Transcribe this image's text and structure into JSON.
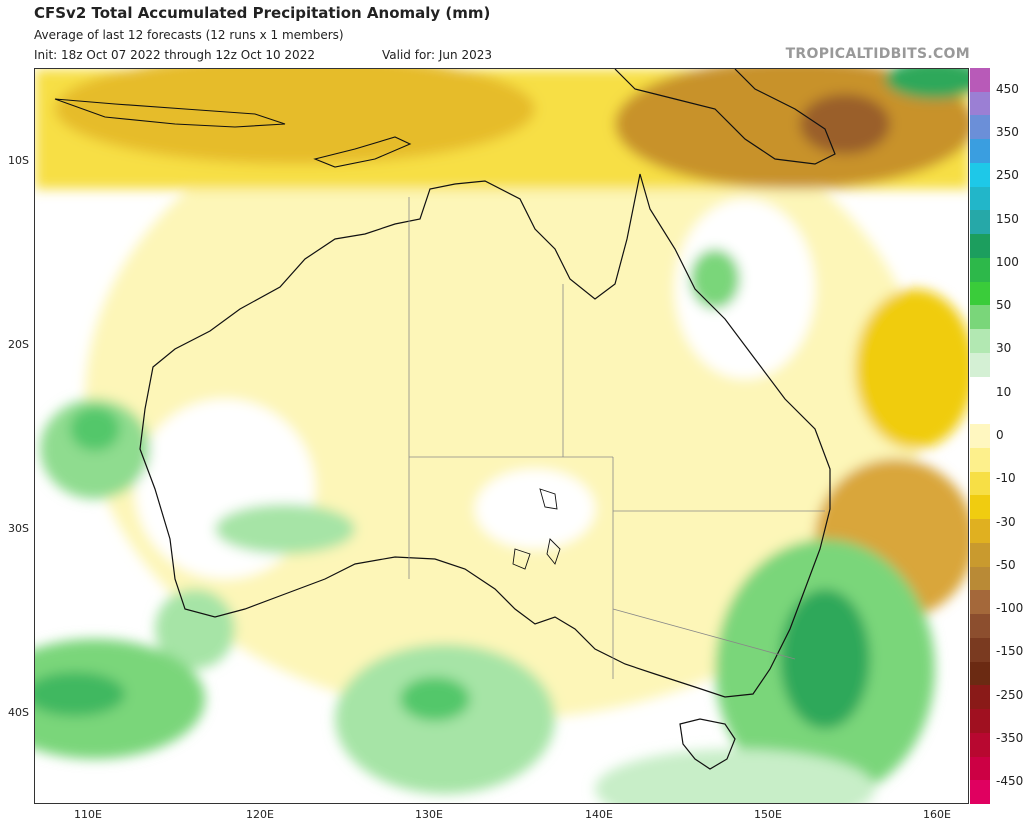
{
  "header": {
    "title": "CFSv2 Total Accumulated Precipitation Anomaly (mm)",
    "subtitle": "Average of last 12 forecasts (12 runs x 1 members)",
    "init": "Init: 18z Oct 07 2022 through 12z Oct 10 2022",
    "valid": "Valid for: Jun 2023",
    "brand": "TROPICALTIDBITS.COM"
  },
  "map": {
    "region": "Australia",
    "lat_labels": [
      "10S",
      "20S",
      "30S",
      "40S"
    ],
    "lon_labels": [
      "110E",
      "120E",
      "130E",
      "140E",
      "150E",
      "160E"
    ],
    "anomaly_fields": [
      {
        "name": "northern-maritime-dry",
        "color": "#e2c240"
      },
      {
        "name": "new-guinea-dry",
        "color": "#c8922a"
      },
      {
        "name": "east-coast-dry",
        "color": "#d9a63a"
      },
      {
        "name": "tasman-wet",
        "color": "#3fb860"
      },
      {
        "name": "southwest-ocean-wet",
        "color": "#52c76a"
      }
    ]
  },
  "colorbar": {
    "labels": [
      "450",
      "350",
      "250",
      "150",
      "100",
      "50",
      "30",
      "10",
      "0",
      "-10",
      "-30",
      "-50",
      "-100",
      "-150",
      "-250",
      "-350",
      "-450"
    ],
    "colors": [
      "#b85ab8",
      "#9b7fd4",
      "#6b8fd8",
      "#3a9ee0",
      "#1ec8e8",
      "#22b6c9",
      "#26a8a8",
      "#1c9e5e",
      "#2db84a",
      "#3acc3a",
      "#7ad67a",
      "#b2e8b2",
      "#d4f0d4",
      "#ffffff",
      "#ffffff",
      "#fff7c0",
      "#fdf08c",
      "#f7df45",
      "#f0cc10",
      "#e0b020",
      "#c99a2e",
      "#b98a36",
      "#a4683a",
      "#8c4e2e",
      "#7a3a20",
      "#6b2a12",
      "#8a1a18",
      "#a01020",
      "#b80830",
      "#cc0044",
      "#e00060"
    ]
  }
}
